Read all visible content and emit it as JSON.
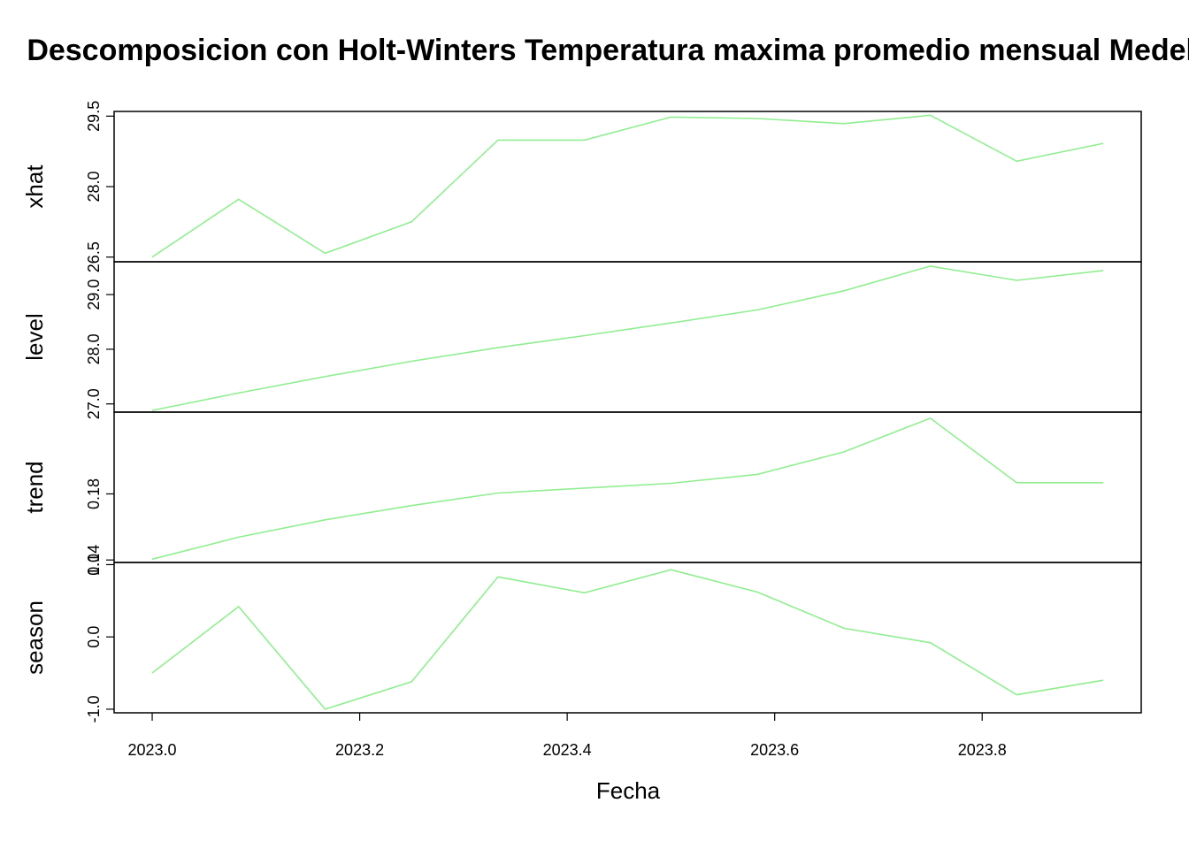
{
  "chart_data": {
    "type": "line",
    "title": "Descomposicion con Holt-Winters Temperatura maxima promedio mensual Medellin",
    "xlabel": "Fecha",
    "x": [
      2023.0,
      2023.0833,
      2023.1667,
      2023.25,
      2023.3333,
      2023.4167,
      2023.5,
      2023.5833,
      2023.6667,
      2023.75,
      2023.8333,
      2023.9167
    ],
    "xlim": [
      2022.9633,
      2023.9533
    ],
    "x_ticks": [
      2023.0,
      2023.2,
      2023.4,
      2023.6,
      2023.8
    ],
    "x_tick_labels": [
      "2023.0",
      "2023.2",
      "2023.4",
      "2023.6",
      "2023.8"
    ],
    "line_color": "#90EE90",
    "grid": false,
    "legend": "none",
    "panels": [
      {
        "name": "xhat",
        "ylim": [
          26.4,
          29.6
        ],
        "y_ticks": [
          26.5,
          28.0,
          29.5
        ],
        "y_tick_labels": [
          "26.5",
          "28.0",
          "29.5"
        ],
        "values": [
          26.5,
          27.73,
          26.58,
          27.25,
          28.99,
          28.99,
          29.48,
          29.45,
          29.34,
          29.52,
          28.54,
          28.92
        ]
      },
      {
        "name": "level",
        "ylim": [
          26.85,
          29.6
        ],
        "y_ticks": [
          27.0,
          28.0,
          29.0
        ],
        "y_tick_labels": [
          "27.0",
          "28.0",
          "29.0"
        ],
        "values": [
          26.88,
          27.2,
          27.5,
          27.78,
          28.03,
          28.25,
          28.48,
          28.72,
          29.07,
          29.52,
          29.26,
          29.44
        ]
      },
      {
        "name": "trend",
        "ylim": [
          0.1385,
          0.2295
        ],
        "y_ticks": [
          0.14,
          0.18
        ],
        "y_tick_labels": [
          "0.14",
          "0.18"
        ],
        "values": [
          0.1405,
          0.1538,
          0.1643,
          0.1729,
          0.1805,
          0.1835,
          0.1864,
          0.1918,
          0.2054,
          0.2258,
          0.1868,
          0.1868
        ]
      },
      {
        "name": "season",
        "ylim": [
          -1.05,
          1.03
        ],
        "y_ticks": [
          -1.0,
          0.0,
          1.0
        ],
        "y_tick_labels": [
          "-1.0",
          "0.0",
          "1.0"
        ],
        "values": [
          -0.5,
          0.42,
          -1.0,
          -0.62,
          0.83,
          0.61,
          0.93,
          0.62,
          0.12,
          -0.08,
          -0.8,
          -0.6
        ]
      }
    ]
  }
}
